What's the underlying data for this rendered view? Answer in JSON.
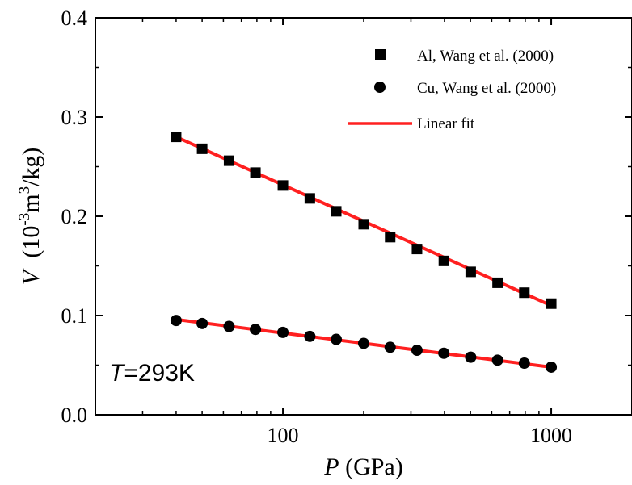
{
  "chart_data": {
    "type": "scatter",
    "x_scale": "log",
    "xlim": [
      20,
      2000
    ],
    "ylim": [
      0.0,
      0.4
    ],
    "x_ticks": [
      100,
      1000
    ],
    "x_tick_labels": [
      "100",
      "1000"
    ],
    "y_ticks": [
      0.0,
      0.1,
      0.2,
      0.3,
      0.4
    ],
    "y_tick_labels": [
      "0.0",
      "0.1",
      "0.2",
      "0.3",
      "0.4"
    ],
    "xlabel_var": "P",
    "xlabel_unit": "(GPa)",
    "ylabel_var": "V",
    "ylabel_unit_pre": "(10",
    "ylabel_sup1": "-3",
    "ylabel_unit_mid": "m",
    "ylabel_sup2": "3",
    "ylabel_unit_post": "/kg)",
    "legend_position": "top-right",
    "annotation": {
      "var": "T",
      "text": "=293K"
    },
    "series": [
      {
        "name": "Al, Wang et al. (2000)",
        "marker": "square",
        "color": "#000000",
        "x": [
          40,
          50,
          63,
          79,
          100,
          126,
          158,
          200,
          251,
          316,
          398,
          501,
          631,
          794,
          1000
        ],
        "y": [
          0.28,
          0.268,
          0.256,
          0.244,
          0.231,
          0.218,
          0.205,
          0.192,
          0.179,
          0.167,
          0.155,
          0.144,
          0.133,
          0.123,
          0.112
        ]
      },
      {
        "name": "Cu, Wang et al. (2000)",
        "marker": "circle",
        "color": "#000000",
        "x": [
          40,
          50,
          63,
          79,
          100,
          126,
          158,
          200,
          251,
          316,
          398,
          501,
          631,
          794,
          1000
        ],
        "y": [
          0.095,
          0.092,
          0.089,
          0.086,
          0.083,
          0.079,
          0.076,
          0.072,
          0.068,
          0.065,
          0.062,
          0.058,
          0.055,
          0.052,
          0.048
        ]
      }
    ],
    "fits": [
      {
        "name": "Linear fit",
        "color": "#ff2020",
        "x": [
          40,
          1000
        ],
        "y": [
          0.28,
          0.11
        ]
      },
      {
        "name": "",
        "color": "#ff2020",
        "x": [
          40,
          1000
        ],
        "y": [
          0.096,
          0.048
        ]
      }
    ]
  }
}
